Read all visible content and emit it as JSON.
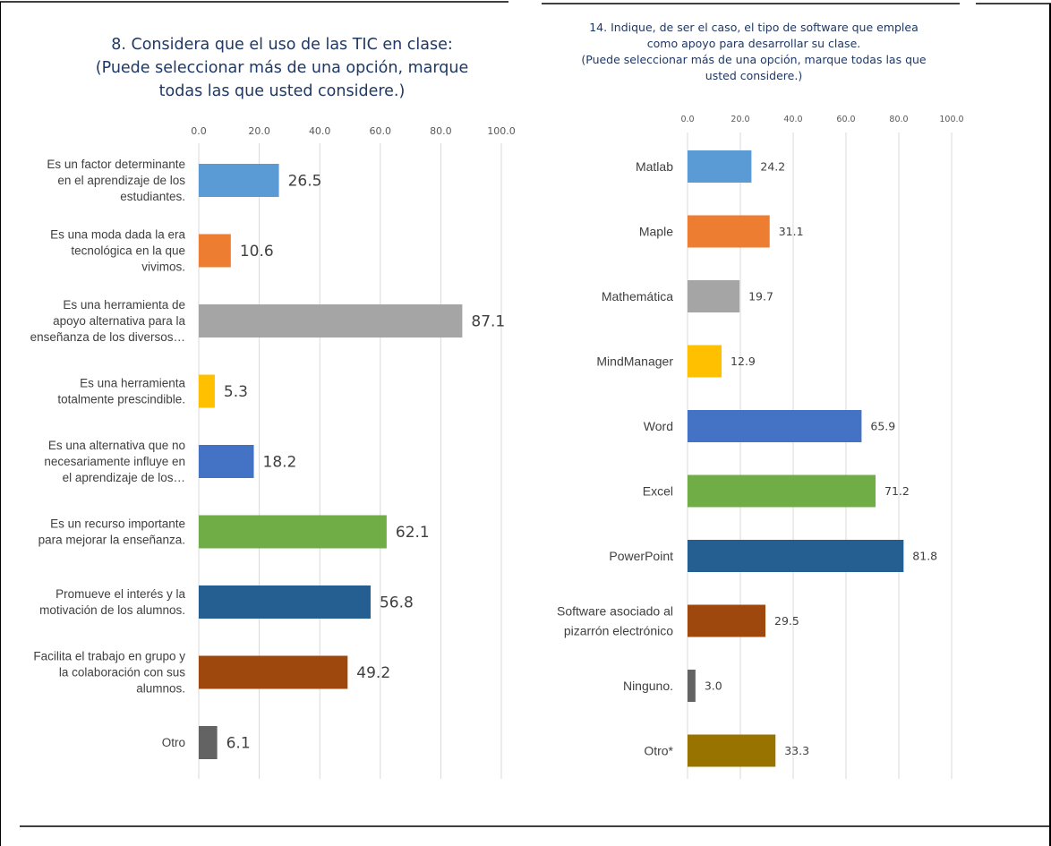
{
  "chart_data": [
    {
      "type": "bar",
      "orientation": "horizontal",
      "title_lines": [
        "8. Considera que el uso de las TIC en clase:",
        "(Puede seleccionar más de una opción, marque",
        "todas las que usted considere.)"
      ],
      "xlim": [
        0,
        100
      ],
      "ticks": [
        "0.0",
        "20.0",
        "40.0",
        "60.0",
        "80.0",
        "100.0"
      ],
      "grid": true,
      "categories": [
        [
          "Es un factor determinante",
          "en el aprendizaje de los",
          "estudiantes."
        ],
        [
          "Es una moda dada la era",
          "tecnológica en la que",
          "vivimos."
        ],
        [
          "Es una herramienta de",
          "apoyo alternativa para la",
          "enseñanza de los diversos…"
        ],
        [
          "Es una herramienta",
          "totalmente prescindible."
        ],
        [
          "Es una alternativa que no",
          "necesariamente influye en",
          "el aprendizaje de los…"
        ],
        [
          "Es un recurso importante",
          "para mejorar la enseñanza."
        ],
        [
          "Promueve el interés y la",
          "motivación de los alumnos."
        ],
        [
          "Facilita el trabajo en grupo y",
          "la colaboración con sus",
          "alumnos."
        ],
        [
          "Otro"
        ]
      ],
      "values": [
        26.5,
        10.6,
        87.1,
        5.3,
        18.2,
        62.1,
        56.8,
        49.2,
        6.1
      ],
      "value_labels": [
        "26.5",
        "10.6",
        "87.1",
        "5.3",
        "18.2",
        "62.1",
        "56.8",
        "49.2",
        "6.1"
      ],
      "colors": [
        "#5b9bd5",
        "#ed7d31",
        "#a5a5a5",
        "#ffc000",
        "#4472c4",
        "#70ad47",
        "#255e91",
        "#9e480e",
        "#636363"
      ]
    },
    {
      "type": "bar",
      "orientation": "horizontal",
      "title_lines": [
        "14. Indique, de ser el caso, el tipo de software que emplea",
        "como apoyo para desarrollar su clase.",
        "(Puede seleccionar más de una opción, marque todas las que",
        "usted considere.)"
      ],
      "xlim": [
        0,
        100
      ],
      "ticks": [
        "0.0",
        "20.0",
        "40.0",
        "60.0",
        "80.0",
        "100.0"
      ],
      "grid": true,
      "categories": [
        [
          "Matlab"
        ],
        [
          "Maple"
        ],
        [
          "Mathemática"
        ],
        [
          "MindManager"
        ],
        [
          "Word"
        ],
        [
          "Excel"
        ],
        [
          "PowerPoint"
        ],
        [
          "Software asociado al",
          "pizarrón electrónico"
        ],
        [
          "Ninguno."
        ],
        [
          "Otro*"
        ]
      ],
      "values": [
        24.2,
        31.1,
        19.7,
        12.9,
        65.9,
        71.2,
        81.8,
        29.5,
        3.0,
        33.3
      ],
      "value_labels": [
        "24.2",
        "31.1",
        "19.7",
        "12.9",
        "65.9",
        "71.2",
        "81.8",
        "29.5",
        "3.0",
        "33.3"
      ],
      "colors": [
        "#5b9bd5",
        "#ed7d31",
        "#a5a5a5",
        "#ffc000",
        "#4472c4",
        "#70ad47",
        "#255e91",
        "#9e480e",
        "#636363",
        "#997300"
      ]
    }
  ]
}
